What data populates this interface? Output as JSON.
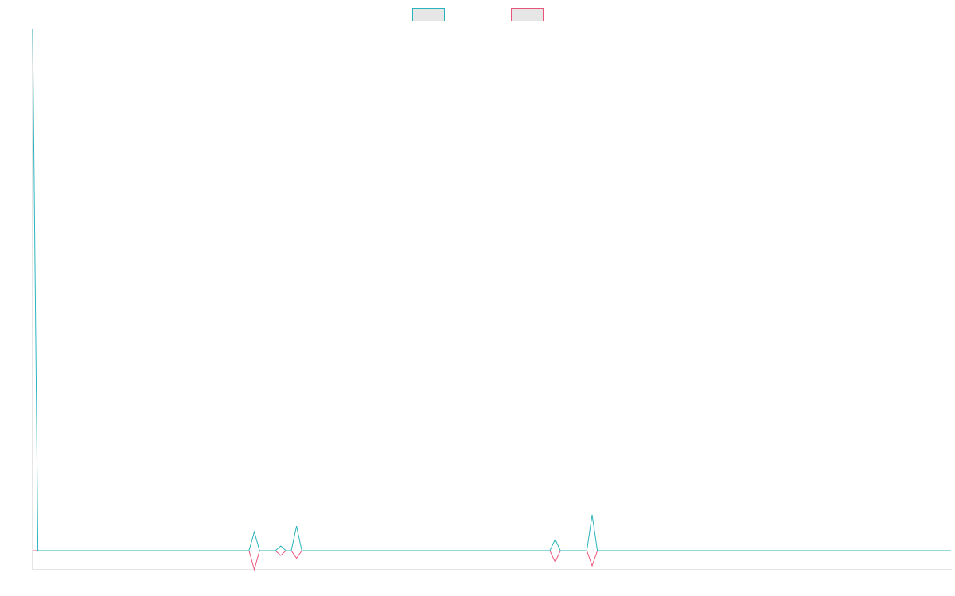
{
  "chart_data": {
    "type": "line",
    "title": "",
    "xlabel": "",
    "ylabel": "",
    "x_count": 175,
    "ylim": [
      -1,
      27.6
    ],
    "grid": false,
    "legend": {
      "placement": "top-center",
      "style": "swatch-only"
    },
    "series": [
      {
        "color": "#2ab3bb",
        "fill": "#e6e6e6",
        "default": 0,
        "points": [
          [
            0,
            27.6
          ],
          [
            1,
            0
          ],
          [
            41,
            0
          ],
          [
            42,
            1
          ],
          [
            43,
            0
          ],
          [
            46,
            0
          ],
          [
            47,
            0.25
          ],
          [
            48,
            0
          ],
          [
            49,
            0
          ],
          [
            50,
            1.3
          ],
          [
            51,
            0
          ],
          [
            98,
            0
          ],
          [
            99,
            0.6
          ],
          [
            100,
            0
          ],
          [
            105,
            0
          ],
          [
            106,
            1.9
          ],
          [
            107,
            0
          ],
          [
            174,
            0
          ]
        ]
      },
      {
        "color": "#e8557a",
        "fill": "#e6e6e6",
        "default": 0,
        "points": [
          [
            0,
            0
          ],
          [
            1,
            0
          ],
          [
            41,
            0
          ],
          [
            42,
            -1
          ],
          [
            43,
            0
          ],
          [
            46,
            0
          ],
          [
            47,
            -0.25
          ],
          [
            48,
            0
          ],
          [
            49,
            0
          ],
          [
            50,
            -0.4
          ],
          [
            51,
            0
          ],
          [
            98,
            0
          ],
          [
            99,
            -0.6
          ],
          [
            100,
            0
          ],
          [
            105,
            0
          ],
          [
            106,
            -0.8
          ],
          [
            107,
            0
          ],
          [
            174,
            0
          ]
        ]
      }
    ]
  }
}
